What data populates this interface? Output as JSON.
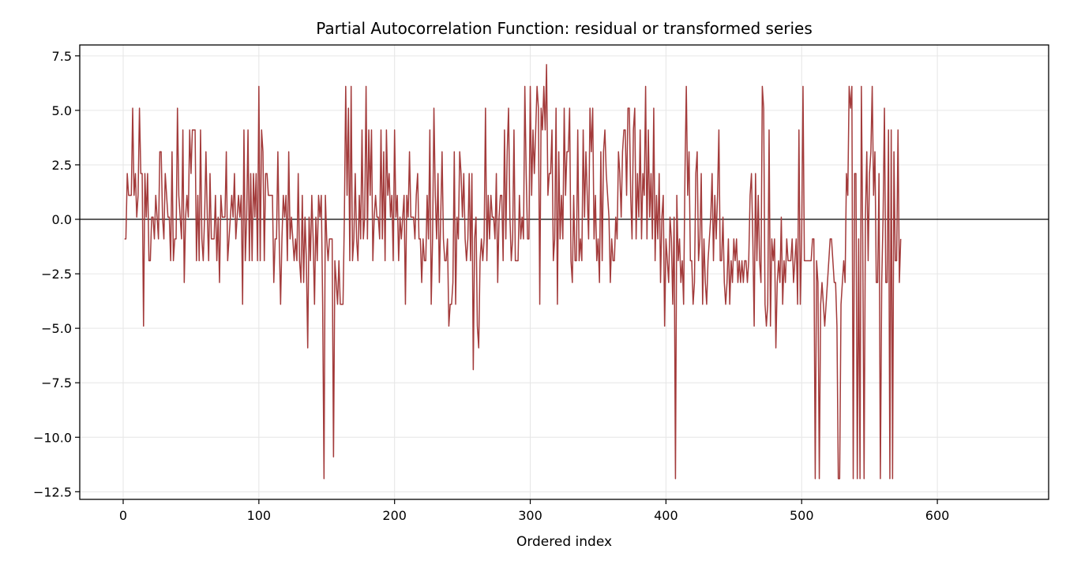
{
  "chart_data": {
    "type": "line",
    "title": "Partial Autocorrelation Function: residual or transformed series",
    "xlabel": "Ordered index",
    "ylabel": "",
    "xlim": [
      -32,
      682
    ],
    "ylim": [
      -12.85,
      8.0
    ],
    "x_ticks": [
      0,
      100,
      200,
      300,
      400,
      500,
      600
    ],
    "x_tick_labels": [
      "0",
      "100",
      "200",
      "300",
      "400",
      "500",
      "600"
    ],
    "y_ticks": [
      7.5,
      5.0,
      2.5,
      0.0,
      -2.5,
      -5.0,
      -7.5,
      -10.0,
      -12.5
    ],
    "y_tick_labels": [
      "7.5",
      "5.0",
      "2.5",
      "0.0",
      "−2.5",
      "−5.0",
      "−7.5",
      "−10.0",
      "−12.5"
    ],
    "grid": true,
    "reference_line": 0,
    "line_color": "#a33b3b",
    "reference_color": "#000000",
    "grid_color": "#e6e6e6",
    "series": [
      {
        "x_start": 1,
        "values": [
          -0.9,
          -0.9,
          2.1,
          1.1,
          1.1,
          1.1,
          5.1,
          1.1,
          2.1,
          0.1,
          1.1,
          5.1,
          2.1,
          2.1,
          -4.9,
          2.1,
          0.1,
          2.1,
          -1.9,
          -1.9,
          0.1,
          0.1,
          -0.9,
          1.1,
          0.1,
          -0.9,
          3.1,
          3.1,
          0.1,
          -0.9,
          2.1,
          1.1,
          0.1,
          0.1,
          -1.9,
          3.1,
          -1.9,
          -0.9,
          -0.9,
          5.1,
          1.1,
          0.1,
          -0.9,
          4.1,
          -2.9,
          0.1,
          1.1,
          0.1,
          4.1,
          2.1,
          4.1,
          4.1,
          4.1,
          -1.9,
          1.1,
          -1.9,
          4.1,
          -0.9,
          -1.9,
          0.1,
          3.1,
          0.1,
          -1.9,
          2.1,
          -0.9,
          -0.9,
          -0.9,
          1.1,
          -1.9,
          0.1,
          -2.9,
          1.1,
          0.1,
          0.1,
          0.1,
          3.1,
          -1.9,
          -0.9,
          0.1,
          1.1,
          0.1,
          2.1,
          -0.9,
          0.1,
          1.1,
          0.1,
          1.1,
          -3.9,
          4.1,
          -1.9,
          0.1,
          4.1,
          -1.9,
          2.1,
          -1.9,
          2.1,
          0.1,
          2.1,
          -1.9,
          6.1,
          -1.9,
          4.1,
          3.1,
          -1.9,
          2.1,
          2.1,
          1.1,
          1.1,
          1.1,
          1.1,
          -2.9,
          -0.9,
          -0.9,
          3.1,
          -0.9,
          -3.9,
          -0.9,
          1.1,
          0.1,
          1.1,
          -1.9,
          3.1,
          -0.9,
          0.1,
          -0.9,
          -1.9,
          -0.9,
          -1.9,
          2.1,
          -1.9,
          -2.9,
          1.1,
          -2.9,
          0.1,
          -1.9,
          -5.9,
          0.1,
          -1.9,
          1.1,
          -0.9,
          -3.9,
          0.1,
          -1.9,
          1.1,
          0.1,
          1.1,
          -3.9,
          -11.9,
          1.1,
          -0.9,
          -1.9,
          -0.9,
          -0.9,
          -0.9,
          -10.9,
          -1.9,
          -2.9,
          -3.9,
          -1.9,
          -3.9,
          -3.9,
          -3.9,
          0.1,
          6.1,
          1.1,
          5.1,
          -1.9,
          6.1,
          -1.9,
          -0.9,
          2.1,
          -0.9,
          -1.9,
          1.1,
          -0.9,
          4.1,
          -0.9,
          0.1,
          6.1,
          -0.9,
          4.1,
          1.1,
          4.1,
          -1.9,
          0.1,
          1.1,
          0.1,
          0.1,
          -0.9,
          4.1,
          -0.9,
          3.1,
          -1.9,
          4.1,
          1.1,
          2.1,
          0.1,
          1.1,
          -1.9,
          4.1,
          0.1,
          1.1,
          -1.9,
          0.1,
          -0.9,
          0.1,
          1.1,
          -3.9,
          1.1,
          0.1,
          3.1,
          0.1,
          0.1,
          0.1,
          -0.9,
          1.1,
          2.1,
          -0.9,
          -0.9,
          -2.9,
          -0.9,
          -1.9,
          -1.9,
          1.1,
          -0.9,
          4.1,
          -3.9,
          -0.9,
          5.1,
          1.1,
          -0.9,
          2.1,
          -2.9,
          0.1,
          3.1,
          -0.9,
          -1.9,
          -1.9,
          -0.9,
          -4.9,
          -3.9,
          -3.9,
          -2.9,
          3.1,
          -3.9,
          0.1,
          -0.9,
          3.1,
          2.1,
          0.1,
          2.1,
          -0.9,
          -1.9,
          -0.9,
          2.1,
          -1.9,
          2.1,
          -6.9,
          -0.9,
          0.1,
          -4.9,
          -5.9,
          -1.9,
          -0.9,
          -1.9,
          -0.9,
          5.1,
          -1.9,
          1.1,
          -0.9,
          1.1,
          0.1,
          0.1,
          -0.9,
          2.1,
          -2.9,
          0.1,
          1.1,
          1.1,
          -1.9,
          4.1,
          -0.9,
          3.1,
          5.1,
          0.1,
          -1.9,
          -0.9,
          4.1,
          -1.9,
          -1.9,
          -1.9,
          1.1,
          -0.9,
          0.1,
          -0.9,
          6.1,
          2.1,
          -0.9,
          -0.9,
          6.1,
          1.1,
          4.1,
          2.1,
          4.1,
          6.1,
          5.1,
          -3.9,
          5.1,
          4.1,
          6.1,
          4.1,
          7.1,
          1.1,
          2.1,
          2.1,
          4.1,
          -1.9,
          -0.9,
          5.1,
          -3.9,
          3.1,
          -0.9,
          1.1,
          -0.9,
          5.1,
          1.1,
          3.1,
          3.1,
          5.1,
          -1.9,
          -2.9,
          1.1,
          -1.9,
          -1.9,
          4.1,
          -1.9,
          -0.9,
          -1.9,
          4.1,
          0.1,
          3.1,
          1.1,
          -0.9,
          5.1,
          3.1,
          5.1,
          -0.9,
          1.1,
          -1.9,
          -0.9,
          -2.9,
          3.1,
          -1.9,
          3.1,
          4.1,
          2.1,
          1.1,
          0.1,
          -2.9,
          -0.9,
          -1.9,
          -1.9,
          0.1,
          -0.9,
          3.1,
          2.1,
          0.1,
          3.1,
          4.1,
          4.1,
          1.1,
          5.1,
          5.1,
          1.1,
          -0.9,
          4.1,
          5.1,
          -0.9,
          2.1,
          0.1,
          4.1,
          -0.9,
          2.1,
          1.1,
          6.1,
          -0.9,
          4.1,
          0.1,
          2.1,
          -0.9,
          5.1,
          -1.9,
          1.1,
          -0.9,
          2.1,
          -2.9,
          0.1,
          1.1,
          -4.9,
          -0.9,
          -1.9,
          -2.9,
          0.1,
          -0.9,
          -3.9,
          0.1,
          -11.9,
          1.1,
          -1.9,
          -0.9,
          -2.9,
          -1.9,
          -3.9,
          2.1,
          6.1,
          1.1,
          3.1,
          -1.9,
          -1.9,
          -3.9,
          -2.9,
          2.1,
          3.1,
          -1.9,
          -0.9,
          2.1,
          -3.9,
          -0.9,
          -2.9,
          -3.9,
          -1.9,
          -0.9,
          0.1,
          2.1,
          -1.9,
          1.1,
          -0.9,
          1.1,
          4.1,
          -1.9,
          -1.9,
          0.1,
          -2.9,
          -3.9,
          -2.9,
          -0.9,
          -3.9,
          -1.9,
          -2.9,
          -0.9,
          -1.9,
          -0.9,
          -2.9,
          -1.9,
          -2.9,
          -1.9,
          -2.9,
          -1.9,
          -1.9,
          -2.9,
          -1.9,
          1.1,
          2.1,
          -0.9,
          -4.9,
          2.1,
          -1.9,
          1.1,
          -1.9,
          -2.9,
          6.1,
          5.1,
          -3.9,
          -4.9,
          -3.9,
          4.1,
          -4.9,
          -0.9,
          -1.9,
          -0.9,
          -5.9,
          -2.9,
          -1.9,
          -2.9,
          0.1,
          -3.9,
          -1.9,
          -2.9,
          -0.9,
          -1.9,
          -1.9,
          -1.9,
          -0.9,
          -2.9,
          -1.9,
          -0.9,
          -3.9,
          4.1,
          -3.9,
          -0.9,
          6.1,
          -1.9,
          -1.9,
          -1.9,
          -1.9,
          -1.9,
          -1.9,
          -0.9,
          -0.9,
          -11.9,
          -1.9,
          -2.9,
          -11.9,
          -3.9,
          -2.9,
          -3.9,
          -4.9,
          -3.9,
          -2.9,
          -1.9,
          -0.9,
          -0.9,
          -1.9,
          -2.9,
          -2.9,
          -4.9,
          -11.9,
          -11.9,
          -3.9,
          -2.9,
          -1.9,
          -2.9,
          2.1,
          1.1,
          6.1,
          5.1,
          6.1,
          -11.9,
          2.1,
          2.1,
          -11.9,
          -0.9,
          -11.9,
          6.1,
          -0.9,
          -11.9,
          0.1,
          3.1,
          -1.9,
          2.1,
          3.1,
          6.1,
          1.1,
          3.1,
          -2.9,
          -2.9,
          2.1,
          -11.9,
          -2.9,
          0.1,
          5.1,
          -2.9,
          -2.9,
          4.1,
          -11.9,
          4.1,
          -11.9,
          3.1,
          -1.9,
          -1.9,
          4.1,
          -2.9,
          -0.9
        ]
      }
    ]
  }
}
